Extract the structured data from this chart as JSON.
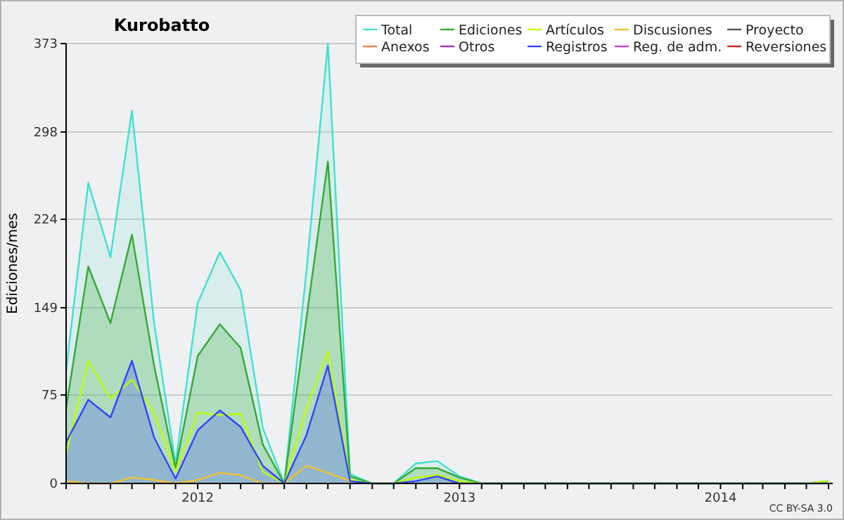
{
  "chart_data": {
    "type": "area",
    "title": "Kurobatto",
    "ylabel": "Ediciones/mes",
    "annotations": [
      "CC BY-SA 3.0"
    ],
    "x": [
      "2011-07",
      "2011-08",
      "2011-09",
      "2011-10",
      "2011-11",
      "2011-12",
      "2012-01",
      "2012-02",
      "2012-03",
      "2012-04",
      "2012-05",
      "2012-06",
      "2012-07",
      "2012-08",
      "2012-09",
      "2012-10",
      "2012-11",
      "2012-12",
      "2013-01",
      "2013-02",
      "2013-03",
      "2013-04",
      "2013-05",
      "2013-06",
      "2013-07",
      "2013-08",
      "2013-09",
      "2013-10",
      "2013-11",
      "2013-12",
      "2014-01",
      "2014-02",
      "2014-03",
      "2014-04",
      "2014-05",
      "2014-06"
    ],
    "series": [
      {
        "name": "Total",
        "color": "#40e0d0",
        "values": [
          96,
          255,
          192,
          316,
          136,
          17,
          153,
          196,
          164,
          47,
          0,
          180,
          373,
          8,
          0,
          0,
          17,
          19,
          6,
          0,
          0,
          0,
          0,
          0,
          0,
          0,
          0,
          0,
          0,
          0,
          0,
          0,
          0,
          0,
          0,
          2
        ]
      },
      {
        "name": "Ediciones",
        "color": "#33aa33",
        "values": [
          64,
          184,
          136,
          211,
          100,
          13,
          108,
          135,
          115,
          33,
          0,
          140,
          273,
          6,
          0,
          0,
          13,
          13,
          5,
          0,
          0,
          0,
          0,
          0,
          0,
          0,
          0,
          0,
          0,
          0,
          0,
          0,
          0,
          0,
          0,
          2
        ]
      },
      {
        "name": "Artículos",
        "type": "line",
        "color": "#bbff00",
        "values": [
          25,
          104,
          72,
          88,
          60,
          10,
          60,
          58,
          59,
          10,
          0,
          64,
          112,
          3,
          0,
          0,
          5,
          7,
          2,
          0,
          0,
          0,
          0,
          0,
          0,
          0,
          0,
          0,
          0,
          0,
          0,
          0,
          0,
          0,
          0,
          2
        ]
      },
      {
        "name": "Discusiones",
        "type": "line",
        "color": "#f0c030",
        "values": [
          2,
          0,
          0,
          5,
          3,
          0,
          3,
          9,
          7,
          0,
          0,
          15,
          9,
          2,
          null,
          null,
          null,
          null,
          null,
          null,
          null,
          null,
          null,
          null,
          null,
          null,
          null,
          null,
          null,
          null,
          null,
          null,
          null,
          null,
          null,
          null
        ]
      },
      {
        "name": "Proyecto",
        "type": "line",
        "color": "#555555",
        "values": [
          null,
          null,
          null,
          null,
          null,
          null,
          null,
          null,
          null,
          null,
          null,
          null,
          null,
          null,
          null,
          null,
          null,
          null,
          null,
          null,
          null,
          null,
          null,
          null,
          null,
          null,
          null,
          null,
          null,
          null,
          null,
          null,
          null,
          null,
          null,
          null
        ]
      },
      {
        "name": "Anexos",
        "type": "line",
        "color": "#ff7f50",
        "values": [
          null,
          null,
          null,
          null,
          null,
          null,
          null,
          null,
          null,
          null,
          null,
          null,
          null,
          null,
          null,
          null,
          null,
          null,
          null,
          null,
          null,
          null,
          null,
          null,
          null,
          null,
          null,
          null,
          null,
          null,
          null,
          null,
          null,
          null,
          null,
          null
        ]
      },
      {
        "name": "Otros",
        "type": "line",
        "color": "#9933cc",
        "values": [
          null,
          null,
          null,
          null,
          null,
          null,
          null,
          null,
          null,
          null,
          null,
          null,
          null,
          null,
          null,
          null,
          null,
          null,
          null,
          null,
          null,
          null,
          null,
          null,
          null,
          null,
          null,
          null,
          null,
          null,
          null,
          null,
          null,
          null,
          null,
          null
        ]
      },
      {
        "name": "Registros",
        "color": "#3344ff",
        "values": [
          35,
          71,
          56,
          104,
          39,
          4,
          45,
          62,
          48,
          15,
          0,
          41,
          100,
          2,
          0,
          0,
          2,
          6,
          0,
          0,
          0,
          0,
          0,
          0,
          0,
          0,
          0,
          0,
          0,
          0,
          0,
          0,
          0,
          0,
          0,
          0
        ]
      },
      {
        "name": "Reg. de adm.",
        "type": "line",
        "color": "#cc44cc",
        "values": [
          null,
          null,
          null,
          null,
          null,
          null,
          null,
          null,
          null,
          null,
          null,
          null,
          null,
          null,
          null,
          null,
          null,
          null,
          null,
          null,
          null,
          null,
          null,
          null,
          null,
          null,
          null,
          null,
          null,
          null,
          null,
          null,
          null,
          null,
          null,
          null
        ]
      },
      {
        "name": "Reversiones",
        "type": "line",
        "color": "#dd2222",
        "values": [
          null,
          null,
          null,
          null,
          null,
          null,
          null,
          null,
          null,
          null,
          null,
          null,
          null,
          null,
          null,
          null,
          null,
          null,
          null,
          null,
          null,
          null,
          null,
          null,
          null,
          null,
          null,
          null,
          null,
          null,
          null,
          null,
          null,
          null,
          null,
          null
        ]
      }
    ],
    "xlim": [
      "2011-07",
      "2014-06"
    ],
    "xticks": [
      {
        "value": "2011-07",
        "label": null
      },
      {
        "value": "2011-08",
        "label": null
      },
      {
        "value": "2011-09",
        "label": null
      },
      {
        "value": "2011-10",
        "label": null
      },
      {
        "value": "2011-11",
        "label": null
      },
      {
        "value": "2011-12",
        "label": null
      },
      {
        "value": "2012-01",
        "label": "2012"
      },
      {
        "value": "2012-02",
        "label": null
      },
      {
        "value": "2012-03",
        "label": null
      },
      {
        "value": "2012-04",
        "label": null
      },
      {
        "value": "2012-05",
        "label": null
      },
      {
        "value": "2012-06",
        "label": null
      },
      {
        "value": "2012-07",
        "label": null
      },
      {
        "value": "2012-08",
        "label": null
      },
      {
        "value": "2012-09",
        "label": null
      },
      {
        "value": "2012-10",
        "label": null
      },
      {
        "value": "2012-11",
        "label": null
      },
      {
        "value": "2012-12",
        "label": null
      },
      {
        "value": "2013-01",
        "label": "2013"
      },
      {
        "value": "2013-02",
        "label": null
      },
      {
        "value": "2013-03",
        "label": null
      },
      {
        "value": "2013-04",
        "label": null
      },
      {
        "value": "2013-05",
        "label": null
      },
      {
        "value": "2013-06",
        "label": null
      },
      {
        "value": "2013-07",
        "label": null
      },
      {
        "value": "2013-08",
        "label": null
      },
      {
        "value": "2013-09",
        "label": null
      },
      {
        "value": "2013-10",
        "label": null
      },
      {
        "value": "2013-11",
        "label": null
      },
      {
        "value": "2013-12",
        "label": null
      },
      {
        "value": "2014-01",
        "label": "2014"
      },
      {
        "value": "2014-02",
        "label": null
      },
      {
        "value": "2014-03",
        "label": null
      },
      {
        "value": "2014-04",
        "label": null
      },
      {
        "value": "2014-05",
        "label": null
      },
      {
        "value": "2014-06",
        "label": null
      }
    ],
    "ylim": [
      0,
      373
    ],
    "yticks": [
      0,
      75,
      149,
      224,
      298,
      373
    ],
    "grid": "y",
    "legend": "top right"
  }
}
